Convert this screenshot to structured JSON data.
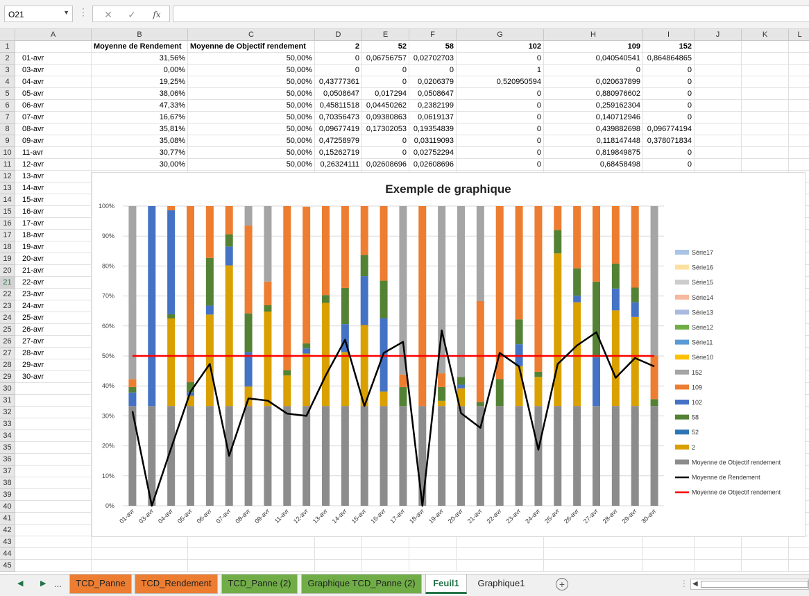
{
  "formula_bar": {
    "name_box": "O21",
    "fx_label": "fx",
    "formula": ""
  },
  "columns": [
    {
      "id": "A",
      "w": 110
    },
    {
      "id": "B",
      "w": 139
    },
    {
      "id": "C",
      "w": 183
    },
    {
      "id": "D",
      "w": 68
    },
    {
      "id": "E",
      "w": 68
    },
    {
      "id": "F",
      "w": 68
    },
    {
      "id": "G",
      "w": 126
    },
    {
      "id": "H",
      "w": 143
    },
    {
      "id": "I",
      "w": 74
    },
    {
      "id": "J",
      "w": 68
    },
    {
      "id": "K",
      "w": 68
    },
    {
      "id": "L",
      "w": 32
    }
  ],
  "selected_row": 21,
  "header_row": [
    "",
    "Moyenne de Rendement",
    "Moyenne de Objectif rendement",
    "2",
    "52",
    "58",
    "102",
    "109",
    "152"
  ],
  "data_rows": [
    [
      "01-avr",
      "31,56%",
      "50,00%",
      "0",
      "0,06756757",
      "0,02702703",
      "0",
      "0,040540541",
      "0,864864865"
    ],
    [
      "03-avr",
      "0,00%",
      "50,00%",
      "0",
      "0",
      "0",
      "1",
      "0",
      "0"
    ],
    [
      "04-avr",
      "19,25%",
      "50,00%",
      "0,43777361",
      "0",
      "0,0206379",
      "0,520950594",
      "0,020637899",
      "0"
    ],
    [
      "05-avr",
      "38,06%",
      "50,00%",
      "0,0508647",
      "0,017294",
      "0,0508647",
      "0",
      "0,880976602",
      "0"
    ],
    [
      "06-avr",
      "47,33%",
      "50,00%",
      "0,45811518",
      "0,04450262",
      "0,2382199",
      "0",
      "0,259162304",
      "0"
    ],
    [
      "07-avr",
      "16,67%",
      "50,00%",
      "0,70356473",
      "0,09380863",
      "0,0619137",
      "0",
      "0,140712946",
      "0"
    ],
    [
      "08-avr",
      "35,81%",
      "50,00%",
      "0,09677419",
      "0,17302053",
      "0,19354839",
      "0",
      "0,439882698",
      "0,096774194"
    ],
    [
      "09-avr",
      "35,08%",
      "50,00%",
      "0,47258979",
      "0",
      "0,03119093",
      "0",
      "0,118147448",
      "0,378071834"
    ],
    [
      "11-avr",
      "30,77%",
      "50,00%",
      "0,15262719",
      "0",
      "0,02752294",
      "0",
      "0,819849875",
      "0"
    ],
    [
      "12-avr",
      "30,00%",
      "50,00%",
      "0,26324111",
      "0,02608696",
      "0,02608696",
      "0",
      "0,68458498",
      "0"
    ]
  ],
  "extra_a_labels": [
    "13-avr",
    "14-avr",
    "15-avr",
    "16-avr",
    "17-avr",
    "18-avr",
    "19-avr",
    "20-avr",
    "21-avr",
    "22-avr",
    "23-avr",
    "24-avr",
    "25-avr",
    "26-avr",
    "27-avr",
    "28-avr",
    "29-avr",
    "30-avr"
  ],
  "chart_data": {
    "type": "bar",
    "title": "Exemple de graphique",
    "stacked": "percent",
    "categories": [
      "01-avr",
      "03-avr",
      "04-avr",
      "05-avr",
      "06-avr",
      "07-avr",
      "08-avr",
      "09-avr",
      "11-avr",
      "12-avr",
      "13-avr",
      "14-avr",
      "15-avr",
      "16-avr",
      "17-avr",
      "18-avr",
      "19-avr",
      "20-avr",
      "21-avr",
      "22-avr",
      "23-avr",
      "24-avr",
      "25-avr",
      "26-avr",
      "27-avr",
      "28-avr",
      "29-avr",
      "30-avr"
    ],
    "ylim": [
      0,
      1
    ],
    "yticks": [
      "0%",
      "10%",
      "20%",
      "30%",
      "40%",
      "50%",
      "60%",
      "70%",
      "80%",
      "90%",
      "100%"
    ],
    "stack_segments_pct": [
      [
        33.3,
        0,
        4.5,
        1.8,
        0,
        2.7,
        57.7
      ],
      [
        33.3,
        0,
        0,
        0,
        66.7,
        0,
        0
      ],
      [
        33.3,
        29.2,
        0,
        1.4,
        34.7,
        1.4,
        0
      ],
      [
        33.3,
        3.4,
        1.2,
        3.4,
        0,
        58.7,
        0
      ],
      [
        33.3,
        30.5,
        3.0,
        15.9,
        0,
        17.3,
        0
      ],
      [
        33.3,
        46.9,
        6.3,
        4.1,
        0,
        9.4,
        0
      ],
      [
        33.3,
        6.5,
        11.5,
        12.9,
        0,
        29.3,
        6.5
      ],
      [
        33.3,
        31.5,
        0,
        2.1,
        0,
        7.9,
        25.2
      ],
      [
        33.3,
        10.2,
        0,
        1.8,
        0,
        54.7,
        0
      ],
      [
        33.3,
        17.5,
        1.7,
        1.7,
        0,
        45.6,
        0
      ],
      [
        33.3,
        34.4,
        0,
        2.6,
        0,
        29.7,
        0
      ],
      [
        33.3,
        18.0,
        9.3,
        12.1,
        0,
        27.3,
        0
      ],
      [
        33.3,
        27.0,
        16.3,
        7.1,
        0,
        16.3,
        0
      ],
      [
        33.3,
        4.8,
        24.5,
        12.5,
        0,
        24.9,
        0
      ],
      [
        33.3,
        0,
        0,
        6.3,
        0,
        4.2,
        56.2
      ],
      [
        33.3,
        0,
        0,
        0,
        0,
        66.7,
        0
      ],
      [
        33.3,
        1.7,
        0,
        4.6,
        0,
        4.6,
        55.8
      ],
      [
        33.3,
        5.9,
        1.2,
        2.6,
        0,
        0,
        57.0
      ],
      [
        33.3,
        0,
        0,
        1.3,
        0,
        33.7,
        31.7
      ],
      [
        33.3,
        0,
        0,
        9.0,
        0,
        57.7,
        0
      ],
      [
        33.3,
        13.3,
        7.3,
        8.3,
        0,
        37.8,
        0
      ],
      [
        33.3,
        9.7,
        0,
        1.7,
        0,
        55.3,
        0
      ],
      [
        33.3,
        50.9,
        0,
        7.8,
        0,
        8.0,
        0
      ],
      [
        33.3,
        34.6,
        2.2,
        9.1,
        0,
        20.8,
        0
      ],
      [
        33.3,
        0,
        16.2,
        25.3,
        0,
        25.2,
        0
      ],
      [
        33.3,
        31.9,
        7.3,
        8.3,
        0,
        19.2,
        0
      ],
      [
        33.3,
        29.7,
        4.9,
        4.9,
        0,
        27.2,
        0
      ],
      [
        33.3,
        0,
        0,
        2.3,
        0,
        14.5,
        49.9
      ]
    ],
    "stack_series": [
      "Moyenne de Objectif rendement",
      "2",
      "52",
      "58",
      "102",
      "109",
      "152"
    ],
    "line_rendement": [
      31.56,
      0,
      19.25,
      38.06,
      47.33,
      16.67,
      35.81,
      35.08,
      30.77,
      30.0,
      43.5,
      55.4,
      33.3,
      51.0,
      54.7,
      0,
      58.5,
      30.9,
      26.0,
      51.0,
      46.5,
      18.7,
      47.3,
      53.5,
      57.9,
      42.7,
      49.3,
      46.5
    ],
    "line_objectif": 50,
    "legend_position": "right",
    "legend": [
      {
        "name": "Série17",
        "color": "#a9c4e4",
        "kind": "box"
      },
      {
        "name": "Série16",
        "color": "#fde0a0",
        "kind": "box"
      },
      {
        "name": "Série15",
        "color": "#cccccc",
        "kind": "box"
      },
      {
        "name": "Série14",
        "color": "#f6b9a0",
        "kind": "box"
      },
      {
        "name": "Série13",
        "color": "#a9b9e0",
        "kind": "box"
      },
      {
        "name": "Série12",
        "color": "#70ad47",
        "kind": "box"
      },
      {
        "name": "Série11",
        "color": "#5b9bd5",
        "kind": "box"
      },
      {
        "name": "Série10",
        "color": "#ffc000",
        "kind": "box"
      },
      {
        "name": "152",
        "color": "#a5a5a5",
        "kind": "box"
      },
      {
        "name": "109",
        "color": "#ed7d31",
        "kind": "box"
      },
      {
        "name": "102",
        "color": "#4472c4",
        "kind": "box"
      },
      {
        "name": "58",
        "color": "#548235",
        "kind": "box"
      },
      {
        "name": "52",
        "color": "#2e75b6",
        "kind": "box"
      },
      {
        "name": "2",
        "color": "#d9a000",
        "kind": "box"
      },
      {
        "name": "Moyenne de Objectif rendement",
        "color": "#8c8c8c",
        "kind": "box"
      },
      {
        "name": "Moyenne de Rendement",
        "color": "#000000",
        "kind": "line"
      },
      {
        "name": "Moyenne de Objectif rendement",
        "color": "#ff0000",
        "kind": "line"
      }
    ],
    "grid": true
  },
  "colors": {
    "excel_green": "#217346",
    "seg": [
      "#8c8c8c",
      "#d9a000",
      "#4472c4",
      "#548235",
      "#4472c4",
      "#ed7d31",
      "#a5a5a5"
    ]
  },
  "sheet_tabs": [
    {
      "label": "TCD_Panne",
      "color": "#ed7d31",
      "active": false
    },
    {
      "label": "TCD_Rendement",
      "color": "#ed7d31",
      "active": false
    },
    {
      "label": "TCD_Panne (2)",
      "color": "#70ad47",
      "active": false
    },
    {
      "label": "Graphique TCD_Panne (2)",
      "color": "#70ad47",
      "active": false
    },
    {
      "label": "Feuil1",
      "color": "#ffffff",
      "active": true
    },
    {
      "label": "Graphique1",
      "color": "#f0f0f0",
      "active": false
    }
  ],
  "tab_ellipsis": "..."
}
